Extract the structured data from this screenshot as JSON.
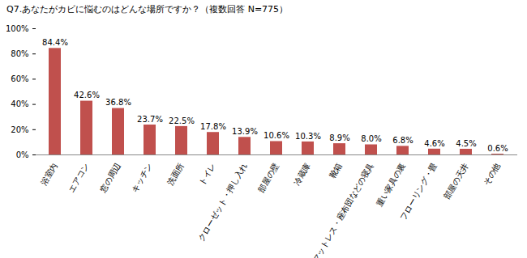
{
  "chart_data": {
    "type": "bar",
    "title": "Q7.あなたがカビに悩むのはどんな場所ですか？（複数回答 N=775）",
    "categories": [
      "浴室内",
      "エアコン",
      "窓の周辺",
      "キッチン",
      "洗面所",
      "トイレ",
      "クローゼット・押し入れ",
      "部屋の壁",
      "冷蔵庫",
      "靴箱",
      "マットレス・座布団などの寝具",
      "重い家具の裏",
      "フローリング・畳",
      "部屋の天井",
      "その他"
    ],
    "values": [
      84.4,
      42.6,
      36.8,
      23.7,
      22.5,
      17.8,
      13.9,
      10.6,
      10.3,
      8.9,
      8.0,
      6.8,
      4.6,
      4.5,
      0.6
    ],
    "value_labels": [
      "84.4%",
      "42.6%",
      "36.8%",
      "23.7%",
      "22.5%",
      "17.8%",
      "13.9%",
      "10.6%",
      "10.3%",
      "8.9%",
      "8.0%",
      "6.8%",
      "4.6%",
      "4.5%",
      "0.6%"
    ],
    "color": "#c0504d",
    "ylim": [
      0,
      100
    ],
    "yticks": [
      {
        "value": 0,
        "label": "0%"
      },
      {
        "value": 20,
        "label": "20%"
      },
      {
        "value": 40,
        "label": "40%"
      },
      {
        "value": 60,
        "label": "60%"
      },
      {
        "value": 80,
        "label": "80%"
      },
      {
        "value": 100,
        "label": "100%"
      }
    ],
    "grid": false,
    "data_labels": true
  }
}
